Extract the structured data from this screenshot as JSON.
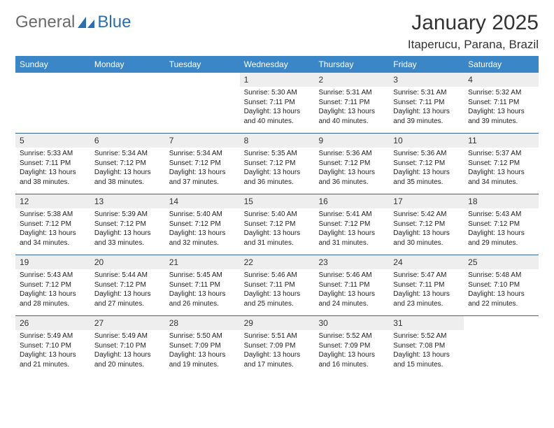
{
  "logo": {
    "general": "General",
    "blue": "Blue"
  },
  "header": {
    "title": "January 2025",
    "location": "Itaperucu, Parana, Brazil"
  },
  "colors": {
    "header_bg": "#3b86c6",
    "header_text": "#ffffff",
    "row_border": "#3b6790",
    "daynum_bg": "#eeeeee",
    "text": "#222222",
    "logo_gray": "#6b6b6b",
    "logo_blue": "#2b6fb0"
  },
  "day_names": [
    "Sunday",
    "Monday",
    "Tuesday",
    "Wednesday",
    "Thursday",
    "Friday",
    "Saturday"
  ],
  "labels": {
    "sunrise": "Sunrise:",
    "sunset": "Sunset:",
    "daylight": "Daylight:"
  },
  "weeks": [
    [
      {
        "n": "",
        "empty": true
      },
      {
        "n": "",
        "empty": true
      },
      {
        "n": "",
        "empty": true
      },
      {
        "n": "1",
        "sr": "5:30 AM",
        "ss": "7:11 PM",
        "dl": "13 hours and 40 minutes."
      },
      {
        "n": "2",
        "sr": "5:31 AM",
        "ss": "7:11 PM",
        "dl": "13 hours and 40 minutes."
      },
      {
        "n": "3",
        "sr": "5:31 AM",
        "ss": "7:11 PM",
        "dl": "13 hours and 39 minutes."
      },
      {
        "n": "4",
        "sr": "5:32 AM",
        "ss": "7:11 PM",
        "dl": "13 hours and 39 minutes."
      }
    ],
    [
      {
        "n": "5",
        "sr": "5:33 AM",
        "ss": "7:11 PM",
        "dl": "13 hours and 38 minutes."
      },
      {
        "n": "6",
        "sr": "5:34 AM",
        "ss": "7:12 PM",
        "dl": "13 hours and 38 minutes."
      },
      {
        "n": "7",
        "sr": "5:34 AM",
        "ss": "7:12 PM",
        "dl": "13 hours and 37 minutes."
      },
      {
        "n": "8",
        "sr": "5:35 AM",
        "ss": "7:12 PM",
        "dl": "13 hours and 36 minutes."
      },
      {
        "n": "9",
        "sr": "5:36 AM",
        "ss": "7:12 PM",
        "dl": "13 hours and 36 minutes."
      },
      {
        "n": "10",
        "sr": "5:36 AM",
        "ss": "7:12 PM",
        "dl": "13 hours and 35 minutes."
      },
      {
        "n": "11",
        "sr": "5:37 AM",
        "ss": "7:12 PM",
        "dl": "13 hours and 34 minutes."
      }
    ],
    [
      {
        "n": "12",
        "sr": "5:38 AM",
        "ss": "7:12 PM",
        "dl": "13 hours and 34 minutes."
      },
      {
        "n": "13",
        "sr": "5:39 AM",
        "ss": "7:12 PM",
        "dl": "13 hours and 33 minutes."
      },
      {
        "n": "14",
        "sr": "5:40 AM",
        "ss": "7:12 PM",
        "dl": "13 hours and 32 minutes."
      },
      {
        "n": "15",
        "sr": "5:40 AM",
        "ss": "7:12 PM",
        "dl": "13 hours and 31 minutes."
      },
      {
        "n": "16",
        "sr": "5:41 AM",
        "ss": "7:12 PM",
        "dl": "13 hours and 31 minutes."
      },
      {
        "n": "17",
        "sr": "5:42 AM",
        "ss": "7:12 PM",
        "dl": "13 hours and 30 minutes."
      },
      {
        "n": "18",
        "sr": "5:43 AM",
        "ss": "7:12 PM",
        "dl": "13 hours and 29 minutes."
      }
    ],
    [
      {
        "n": "19",
        "sr": "5:43 AM",
        "ss": "7:12 PM",
        "dl": "13 hours and 28 minutes."
      },
      {
        "n": "20",
        "sr": "5:44 AM",
        "ss": "7:12 PM",
        "dl": "13 hours and 27 minutes."
      },
      {
        "n": "21",
        "sr": "5:45 AM",
        "ss": "7:11 PM",
        "dl": "13 hours and 26 minutes."
      },
      {
        "n": "22",
        "sr": "5:46 AM",
        "ss": "7:11 PM",
        "dl": "13 hours and 25 minutes."
      },
      {
        "n": "23",
        "sr": "5:46 AM",
        "ss": "7:11 PM",
        "dl": "13 hours and 24 minutes."
      },
      {
        "n": "24",
        "sr": "5:47 AM",
        "ss": "7:11 PM",
        "dl": "13 hours and 23 minutes."
      },
      {
        "n": "25",
        "sr": "5:48 AM",
        "ss": "7:10 PM",
        "dl": "13 hours and 22 minutes."
      }
    ],
    [
      {
        "n": "26",
        "sr": "5:49 AM",
        "ss": "7:10 PM",
        "dl": "13 hours and 21 minutes."
      },
      {
        "n": "27",
        "sr": "5:49 AM",
        "ss": "7:10 PM",
        "dl": "13 hours and 20 minutes."
      },
      {
        "n": "28",
        "sr": "5:50 AM",
        "ss": "7:09 PM",
        "dl": "13 hours and 19 minutes."
      },
      {
        "n": "29",
        "sr": "5:51 AM",
        "ss": "7:09 PM",
        "dl": "13 hours and 17 minutes."
      },
      {
        "n": "30",
        "sr": "5:52 AM",
        "ss": "7:09 PM",
        "dl": "13 hours and 16 minutes."
      },
      {
        "n": "31",
        "sr": "5:52 AM",
        "ss": "7:08 PM",
        "dl": "13 hours and 15 minutes."
      },
      {
        "n": "",
        "empty": true
      }
    ]
  ]
}
